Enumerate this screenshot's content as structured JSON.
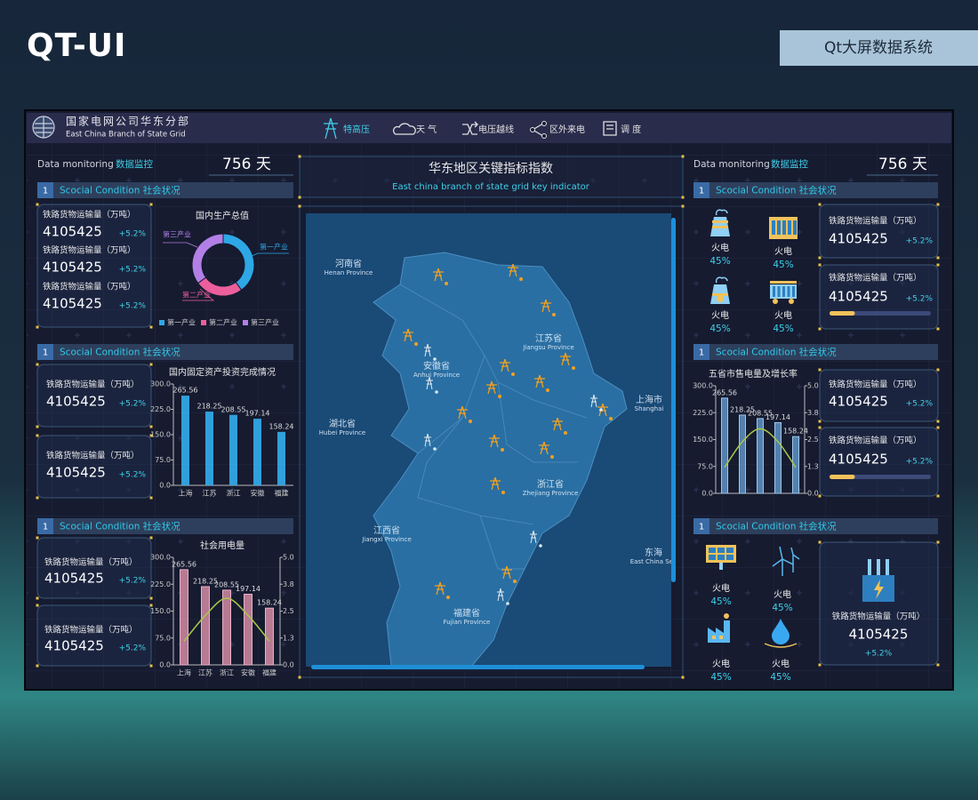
{
  "brand": "QT-UI",
  "app_title": "Qt大屏数据系统",
  "header": {
    "org_cn": "国家电网公司华东分部",
    "org_en": "East China Branch of State Grid",
    "nav": [
      "特高压",
      "天 气",
      "电压越线",
      "区外来电",
      "调 度"
    ]
  },
  "left": {
    "monitor_label": "Data monitoring",
    "monitor_label_cn": "数据监控",
    "days": "756 天",
    "sections": [
      {
        "index": "1",
        "title": "Scocial Condition 社会状况",
        "stats": [
          {
            "label": "铁路货物运输量（万吨）",
            "value": "4105425",
            "change": "+5.2%"
          },
          {
            "label": "铁路货物运输量（万吨）",
            "value": "4105425",
            "change": "+5.2%"
          },
          {
            "label": "铁路货物运输量（万吨）",
            "value": "4105425",
            "change": "+5.2%"
          }
        ]
      },
      {
        "index": "1",
        "title": "Scocial Condition 社会状况",
        "stats": [
          {
            "label": "铁路货物运输量（万吨）",
            "value": "4105425",
            "change": "+5.2%"
          },
          {
            "label": "铁路货物运输量（万吨）",
            "value": "4105425",
            "change": "+5.2%"
          }
        ]
      },
      {
        "index": "1",
        "title": "Scocial Condition 社会状况",
        "stats": [
          {
            "label": "铁路货物运输量（万吨）",
            "value": "4105425",
            "change": "+5.2%"
          },
          {
            "label": "铁路货物运输量（万吨）",
            "value": "4105425",
            "change": "+5.2%"
          }
        ]
      }
    ]
  },
  "center": {
    "title": "华东地区关键指标指数",
    "subtitle": "East china branch of state grid key indicator",
    "regions": [
      {
        "name": "河南省",
        "name_en": "Henan Province"
      },
      {
        "name": "江苏省",
        "name_en": "Jiangsu Province"
      },
      {
        "name": "安徽省",
        "name_en": "Anhui Province"
      },
      {
        "name": "上海市",
        "name_en": "Shanghai"
      },
      {
        "name": "湖北省",
        "name_en": "Hubei Province"
      },
      {
        "name": "浙江省",
        "name_en": "Zhejiang Province"
      },
      {
        "name": "江西省",
        "name_en": "Jiangxi Province"
      },
      {
        "name": "东海",
        "name_en": "East China Sea"
      },
      {
        "name": "福建省",
        "name_en": "Fujian Province"
      }
    ]
  },
  "right": {
    "monitor_label": "Data monitoring",
    "monitor_label_cn": "数据监控",
    "days": "756 天",
    "sections": [
      {
        "index": "1",
        "title": "Scocial Condition 社会状况",
        "gauges": [
          {
            "label": "火电",
            "value": "45%"
          },
          {
            "label": "火电",
            "value": "45%"
          },
          {
            "label": "火电",
            "value": "45%"
          },
          {
            "label": "火电",
            "value": "45%"
          }
        ],
        "stats": [
          {
            "label": "铁路货物运输量（万吨）",
            "value": "4105425",
            "change": "+5.2%"
          },
          {
            "label": "铁路货物运输量（万吨）",
            "value": "4105425",
            "change": "+5.2%",
            "progress": 25
          }
        ]
      },
      {
        "index": "1",
        "title": "Scocial Condition 社会状况",
        "stats": [
          {
            "label": "铁路货物运输量（万吨）",
            "value": "4105425",
            "change": "+5.2%"
          },
          {
            "label": "铁路货物运输量（万吨）",
            "value": "4105425",
            "change": "+5.2%",
            "progress": 25
          }
        ]
      },
      {
        "index": "1",
        "title": "Scocial Condition 社会状况",
        "gauges": [
          {
            "label": "火电",
            "value": "45%"
          },
          {
            "label": "火电",
            "value": "45%"
          },
          {
            "label": "火电",
            "value": "45%"
          },
          {
            "label": "火电",
            "value": "45%"
          }
        ],
        "stats": [
          {
            "label": "铁路货物运输量（万吨）",
            "value": "4105425",
            "change": "+5.2%"
          }
        ]
      }
    ]
  },
  "chart_data": [
    {
      "type": "pie",
      "title": "国内生产总值",
      "donut": true,
      "legend": "bottom",
      "categories": [
        "第一产业",
        "第二产业",
        "第三产业"
      ],
      "values": [
        40,
        25,
        35
      ],
      "colors": [
        "#2ea7e6",
        "#ec5f9c",
        "#b27fe6"
      ]
    },
    {
      "type": "bar",
      "title": "国内固定资产投资完成情况",
      "categories": [
        "上海",
        "江苏",
        "浙江",
        "安徽",
        "福建"
      ],
      "values": [
        265.56,
        218.25,
        208.55,
        197.14,
        158.24
      ],
      "color": "#34aef0",
      "ylim": [
        0,
        300
      ],
      "yticks": [
        {
          "value": 0,
          "label": "0.0"
        },
        {
          "value": 75,
          "label": "75.0"
        },
        {
          "value": 150,
          "label": "150.0"
        },
        {
          "value": 225,
          "label": "225.0"
        },
        {
          "value": 300,
          "label": "300.0"
        }
      ]
    },
    {
      "type": "combo",
      "title": "社会用电量",
      "categories": [
        "上海",
        "江苏",
        "浙江",
        "安徽",
        "福建"
      ],
      "series": [
        {
          "type": "bar",
          "color": "#c9859e",
          "values": [
            265.56,
            218.25,
            208.55,
            197.14,
            158.24
          ]
        },
        {
          "type": "line",
          "axis": "y2",
          "color": "#a8c848",
          "values": [
            1.1,
            2.3,
            3.1,
            2.3,
            1.1
          ]
        }
      ],
      "ylim": [
        0,
        300
      ],
      "yticks": [
        {
          "value": 0,
          "label": "0.0"
        },
        {
          "value": 75,
          "label": "75.0"
        },
        {
          "value": 150,
          "label": "150.0"
        },
        {
          "value": 225,
          "label": "225.0"
        },
        {
          "value": 300,
          "label": "300.0"
        }
      ],
      "y2lim": [
        0,
        5
      ],
      "y2ticks": [
        {
          "value": 0,
          "label": "0.0"
        },
        {
          "value": 1.25,
          "label": "1.3"
        },
        {
          "value": 2.5,
          "label": "2.5"
        },
        {
          "value": 3.75,
          "label": "3.8"
        },
        {
          "value": 5,
          "label": "5.0"
        }
      ]
    },
    {
      "type": "combo",
      "title": "五省市售电量及增长率",
      "series": [
        {
          "type": "bar",
          "color": "#5a8cbc",
          "values": [
            265.56,
            218.25,
            208.55,
            197.14,
            158.24
          ]
        },
        {
          "type": "line",
          "axis": "y2",
          "color": "#a8c848",
          "values": [
            1.2,
            2.4,
            3.0,
            2.4,
            1.2
          ]
        }
      ],
      "ylim": [
        0,
        300
      ],
      "yticks": [
        {
          "value": 0,
          "label": "0.0"
        },
        {
          "value": 75,
          "label": "75.0"
        },
        {
          "value": 150,
          "label": "150.0"
        },
        {
          "value": 225,
          "label": "225.0"
        },
        {
          "value": 300,
          "label": "300.0"
        }
      ],
      "y2lim": [
        0,
        5
      ],
      "y2ticks": [
        {
          "value": 0,
          "label": "0.0"
        },
        {
          "value": 1.25,
          "label": "1.3"
        },
        {
          "value": 2.5,
          "label": "2.5"
        },
        {
          "value": 3.75,
          "label": "3.8"
        },
        {
          "value": 5,
          "label": "5.0"
        }
      ]
    }
  ]
}
